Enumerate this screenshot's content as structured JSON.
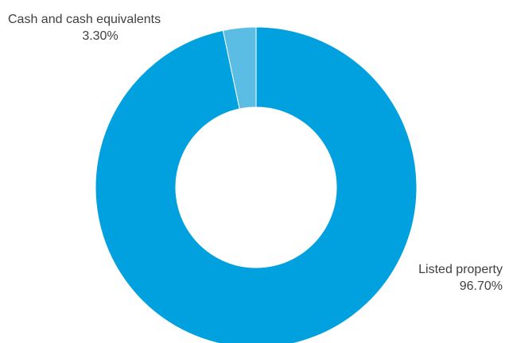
{
  "chart_data": {
    "type": "pie",
    "variant": "donut",
    "categories": [
      "Listed property",
      "Cash and cash equivalents"
    ],
    "values": [
      96.7,
      3.3
    ],
    "value_labels": [
      "96.70%",
      "3.30%"
    ],
    "colors": [
      "#00A1DE",
      "#5BBCE4"
    ],
    "background": "#ffffff",
    "legend": "none",
    "start_angle": "top, clockwise"
  }
}
